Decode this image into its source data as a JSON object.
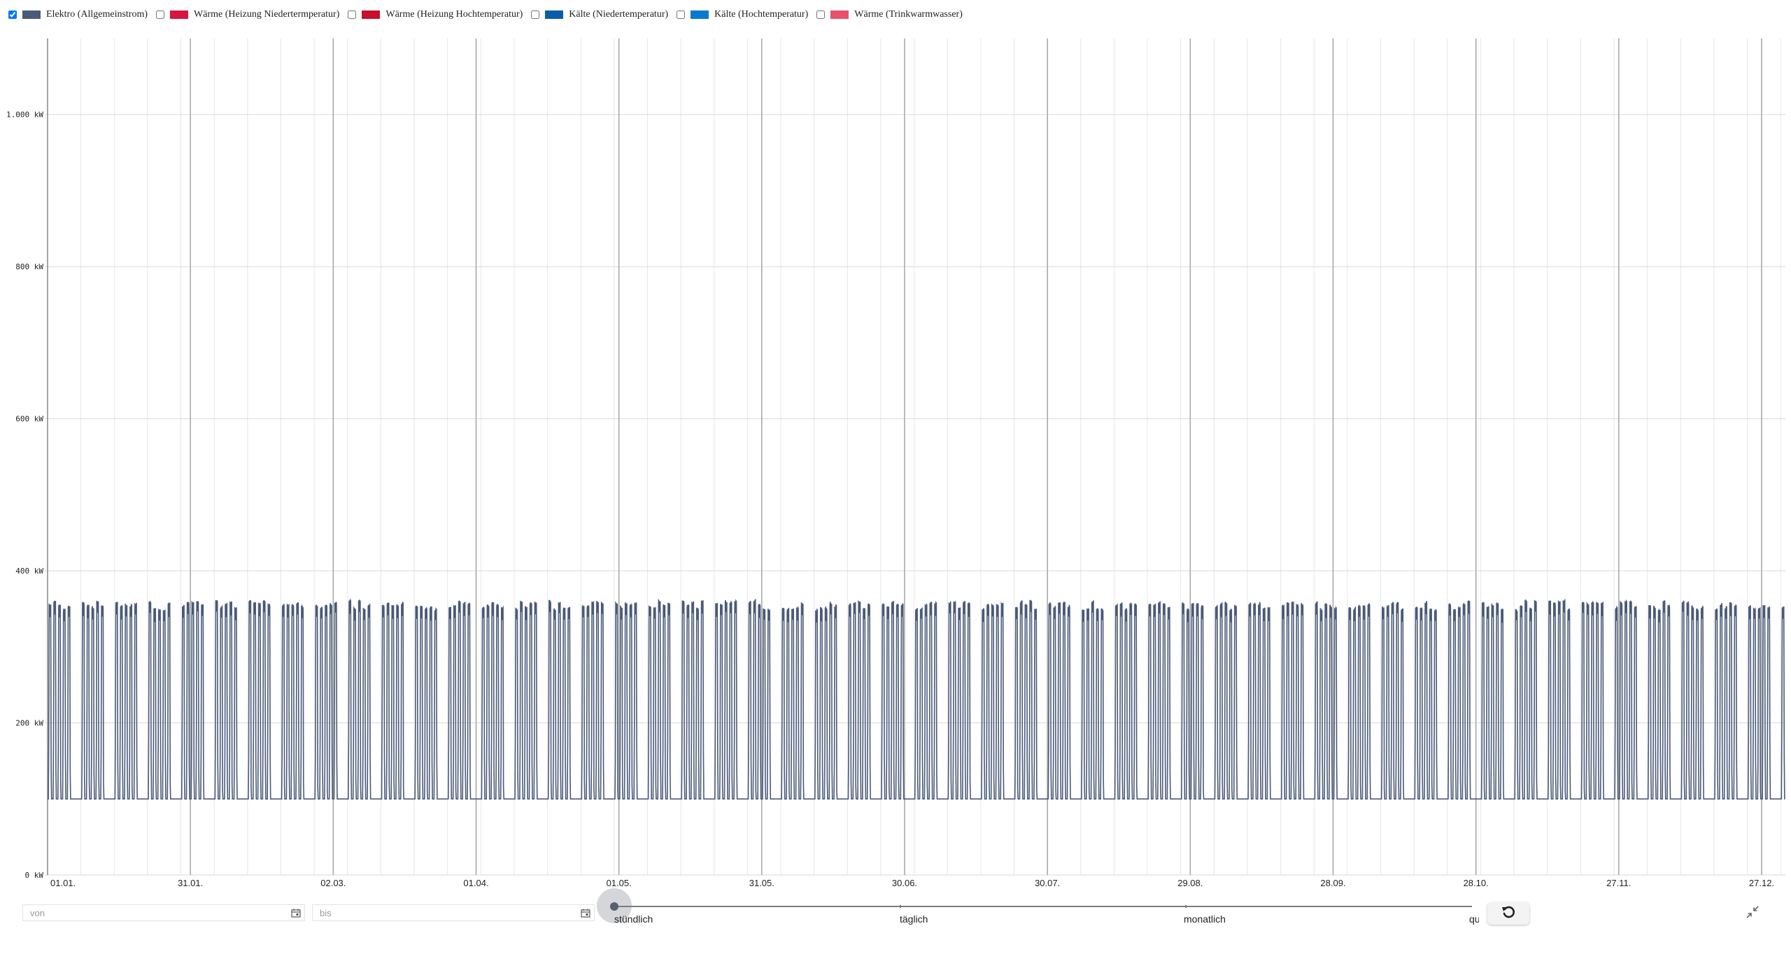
{
  "legend": [
    {
      "label": "Elektro (Allgemeinstrom)",
      "checked": true,
      "color": "#4a5a78"
    },
    {
      "label": "Wärme (Heizung Niedertermperatur)",
      "checked": false,
      "color": "#d6163f"
    },
    {
      "label": "Wärme (Heizung Hochtemperatur)",
      "checked": false,
      "color": "#c8102e"
    },
    {
      "label": "Kälte (Niedertemperatur)",
      "checked": false,
      "color": "#0a5ea8"
    },
    {
      "label": "Kälte (Hochtemperatur)",
      "checked": false,
      "color": "#0b79d0"
    },
    {
      "label": "Wärme (Trinkwarmwasser)",
      "checked": false,
      "color": "#e8506b"
    }
  ],
  "chart_data": {
    "type": "area",
    "title": "",
    "xlabel": "",
    "ylabel": "",
    "unit": "kW",
    "ylim": [
      0,
      1100
    ],
    "yticks": [
      "0 kW",
      "200 kW",
      "400 kW",
      "600 kW",
      "800 kW",
      "1.000 kW"
    ],
    "xlim": [
      "01.01.",
      "31.12."
    ],
    "xticks": [
      "01.01.",
      "31.01.",
      "02.03.",
      "01.04.",
      "01.05.",
      "31.05.",
      "30.06.",
      "30.07.",
      "29.08.",
      "28.09.",
      "28.10.",
      "27.11.",
      "27.12."
    ],
    "grid": true,
    "series": [
      {
        "name": "Elektro (Allgemeinstrom)",
        "color": "#4a5a78",
        "resolution": "hourly",
        "profile": {
          "baseload_kw": 100,
          "weekday_peak_kw": [
            350,
            362
          ],
          "shoulder_kw": [
            150,
            200
          ],
          "workdays_per_week": 5,
          "weekend_kw": 100
        }
      }
    ]
  },
  "controls": {
    "from_placeholder": "von",
    "to_placeholder": "bis",
    "resolution_options": [
      "stündlich",
      "täglich",
      "monatlich",
      "quartalsweise"
    ],
    "resolution_selected": "stündlich",
    "reset_icon": "reset-icon",
    "collapse_icon": "collapse-icon"
  }
}
